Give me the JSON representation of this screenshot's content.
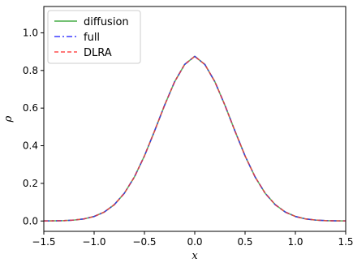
{
  "chart_data": {
    "type": "line",
    "xlabel": "x",
    "ylabel": "ρ",
    "xlim": [
      -1.5,
      1.5
    ],
    "ylim": [
      -0.055,
      1.14
    ],
    "xticks": [
      -1.5,
      -1.0,
      -0.5,
      0.0,
      0.5,
      1.0,
      1.5
    ],
    "xtick_labels": [
      "−1.5",
      "−1.0",
      "−0.5",
      "0.0",
      "0.5",
      "1.0",
      "1.5"
    ],
    "yticks": [
      0.0,
      0.2,
      0.4,
      0.6,
      0.8,
      1.0
    ],
    "ytick_labels": [
      "0.0",
      "0.2",
      "0.4",
      "0.6",
      "0.8",
      "1.0"
    ],
    "grid": false,
    "legend_position": "top-left",
    "x": [
      -1.5,
      -1.4,
      -1.3,
      -1.2,
      -1.1,
      -1.0,
      -0.9,
      -0.8,
      -0.7,
      -0.6,
      -0.5,
      -0.4,
      -0.3,
      -0.2,
      -0.1,
      0.0,
      0.1,
      0.2,
      0.3,
      0.4,
      0.5,
      0.6,
      0.7,
      0.8,
      0.9,
      1.0,
      1.1,
      1.2,
      1.3,
      1.4,
      1.5
    ],
    "series": [
      {
        "name": "diffusion",
        "color": "#2ca02c",
        "style": "solid",
        "values": [
          0.0003,
          0.0007,
          0.0019,
          0.0049,
          0.0112,
          0.0241,
          0.0473,
          0.0866,
          0.1473,
          0.2337,
          0.3458,
          0.4774,
          0.615,
          0.7401,
          0.8323,
          0.875,
          0.8323,
          0.7401,
          0.615,
          0.4774,
          0.3458,
          0.2337,
          0.1473,
          0.0866,
          0.0473,
          0.0241,
          0.0112,
          0.0049,
          0.0019,
          0.0007,
          0.0003
        ]
      },
      {
        "name": "full",
        "color": "#1f1fff",
        "style": "dashdot",
        "values": [
          0.0003,
          0.0007,
          0.0019,
          0.0049,
          0.0112,
          0.0241,
          0.0473,
          0.0866,
          0.1473,
          0.2337,
          0.3458,
          0.4774,
          0.615,
          0.7401,
          0.8323,
          0.875,
          0.8323,
          0.7401,
          0.615,
          0.4774,
          0.3458,
          0.2337,
          0.1473,
          0.0866,
          0.0473,
          0.0241,
          0.0112,
          0.0049,
          0.0019,
          0.0007,
          0.0003
        ]
      },
      {
        "name": "DLRA",
        "color": "#ff3333",
        "style": "dashed",
        "values": [
          0.0003,
          0.0007,
          0.0019,
          0.0049,
          0.0112,
          0.0241,
          0.0473,
          0.0866,
          0.1473,
          0.2337,
          0.3458,
          0.4774,
          0.615,
          0.7401,
          0.8323,
          0.875,
          0.8323,
          0.7401,
          0.615,
          0.4774,
          0.3458,
          0.2337,
          0.1473,
          0.0866,
          0.0473,
          0.0241,
          0.0112,
          0.0049,
          0.0019,
          0.0007,
          0.0003
        ]
      }
    ]
  }
}
